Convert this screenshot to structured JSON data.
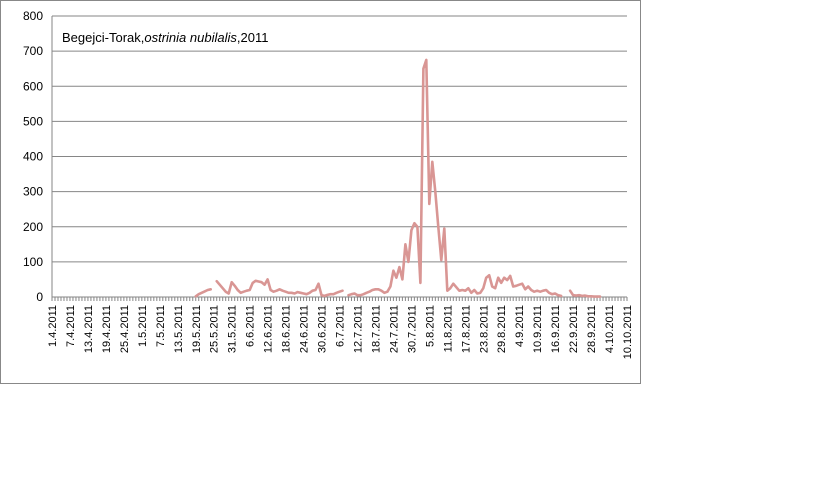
{
  "chart_data": {
    "type": "line",
    "title_parts": [
      "Begejci-Torak,",
      "ostrinia nubilalis",
      ",2011"
    ],
    "xlabel": "",
    "ylabel": "",
    "ylim": [
      0,
      800
    ],
    "yticks": [
      0,
      100,
      200,
      300,
      400,
      500,
      600,
      700,
      800
    ],
    "grid": "horizontal",
    "legend": "none",
    "x_start": "1.4.2011",
    "x_end": "10.10.2011",
    "xtick_labels": [
      "1.4.2011",
      "7.4.2011",
      "13.4.2011",
      "19.4.2011",
      "25.4.2011",
      "1.5.2011",
      "7.5.2011",
      "13.5.2011",
      "19.5.2011",
      "25.5.2011",
      "31.5.2011",
      "6.6.2011",
      "12.6.2011",
      "18.6.2011",
      "24.6.2011",
      "30.6.2011",
      "6.7.2011",
      "12.7.2011",
      "18.7.2011",
      "24.7.2011",
      "30.7.2011",
      "5.8.2011",
      "11.8.2011",
      "17.8.2011",
      "23.8.2011",
      "29.8.2011",
      "4.9.2011",
      "10.9.2011",
      "16.9.2011",
      "22.9.2011",
      "28.9.2011",
      "4.10.2011",
      "10.10.2011"
    ],
    "series": [
      {
        "color": "#d99694",
        "segments": [
          [
            [
              "19.5.2011",
              2
            ],
            [
              "20.5.2011",
              8
            ],
            [
              "21.5.2011",
              12
            ],
            [
              "22.5.2011",
              16
            ],
            [
              "23.5.2011",
              20
            ],
            [
              "24.5.2011",
              22
            ]
          ],
          [
            [
              "26.5.2011",
              45
            ],
            [
              "27.5.2011",
              35
            ],
            [
              "28.5.2011",
              25
            ],
            [
              "29.5.2011",
              15
            ],
            [
              "30.5.2011",
              10
            ],
            [
              "31.5.2011",
              42
            ],
            [
              "1.6.2011",
              32
            ],
            [
              "2.6.2011",
              20
            ],
            [
              "3.6.2011",
              12
            ],
            [
              "4.6.2011",
              15
            ],
            [
              "5.6.2011",
              18
            ],
            [
              "6.6.2011",
              20
            ],
            [
              "7.6.2011",
              40
            ],
            [
              "8.6.2011",
              46
            ],
            [
              "9.6.2011",
              44
            ],
            [
              "10.6.2011",
              42
            ],
            [
              "11.6.2011",
              35
            ],
            [
              "12.6.2011",
              50
            ],
            [
              "13.6.2011",
              20
            ],
            [
              "14.6.2011",
              15
            ],
            [
              "15.6.2011",
              18
            ],
            [
              "16.6.2011",
              22
            ],
            [
              "17.6.2011",
              18
            ],
            [
              "18.6.2011",
              15
            ],
            [
              "19.6.2011",
              12
            ],
            [
              "20.6.2011",
              12
            ],
            [
              "21.6.2011",
              10
            ],
            [
              "22.6.2011",
              14
            ],
            [
              "23.6.2011",
              12
            ],
            [
              "24.6.2011",
              10
            ],
            [
              "25.6.2011",
              8
            ],
            [
              "26.6.2011",
              12
            ],
            [
              "27.6.2011",
              18
            ],
            [
              "28.6.2011",
              20
            ],
            [
              "29.6.2011",
              38
            ],
            [
              "30.6.2011",
              5
            ],
            [
              "1.7.2011",
              3
            ],
            [
              "2.7.2011",
              6
            ],
            [
              "3.7.2011",
              8
            ],
            [
              "4.7.2011",
              8
            ],
            [
              "5.7.2011",
              12
            ],
            [
              "6.7.2011",
              15
            ],
            [
              "7.7.2011",
              18
            ]
          ],
          [
            [
              "9.7.2011",
              5
            ],
            [
              "10.7.2011",
              8
            ],
            [
              "11.7.2011",
              10
            ],
            [
              "12.7.2011",
              5
            ],
            [
              "13.7.2011",
              5
            ],
            [
              "14.7.2011",
              8
            ],
            [
              "15.7.2011",
              12
            ],
            [
              "16.7.2011",
              15
            ],
            [
              "17.7.2011",
              20
            ],
            [
              "18.7.2011",
              22
            ],
            [
              "19.7.2011",
              22
            ],
            [
              "20.7.2011",
              18
            ],
            [
              "21.7.2011",
              12
            ],
            [
              "22.7.2011",
              15
            ],
            [
              "23.7.2011",
              30
            ],
            [
              "24.7.2011",
              75
            ],
            [
              "25.7.2011",
              55
            ],
            [
              "26.7.2011",
              85
            ],
            [
              "27.7.2011",
              50
            ],
            [
              "28.7.2011",
              150
            ],
            [
              "29.7.2011",
              100
            ],
            [
              "30.7.2011",
              190
            ],
            [
              "31.7.2011",
              210
            ],
            [
              "1.8.2011",
              200
            ],
            [
              "2.8.2011",
              40
            ],
            [
              "3.8.2011",
              650
            ],
            [
              "4.8.2011",
              675
            ],
            [
              "5.8.2011",
              265
            ],
            [
              "6.8.2011",
              385
            ],
            [
              "7.8.2011",
              300
            ],
            [
              "8.8.2011",
              200
            ],
            [
              "9.8.2011",
              105
            ],
            [
              "10.8.2011",
              195
            ],
            [
              "11.8.2011",
              18
            ],
            [
              "12.8.2011",
              25
            ],
            [
              "13.8.2011",
              38
            ],
            [
              "14.8.2011",
              28
            ],
            [
              "15.8.2011",
              18
            ],
            [
              "16.8.2011",
              20
            ],
            [
              "17.8.2011",
              18
            ],
            [
              "18.8.2011",
              25
            ],
            [
              "19.8.2011",
              12
            ],
            [
              "20.8.2011",
              20
            ],
            [
              "21.8.2011",
              10
            ],
            [
              "22.8.2011",
              12
            ],
            [
              "23.8.2011",
              25
            ],
            [
              "24.8.2011",
              55
            ],
            [
              "25.8.2011",
              62
            ],
            [
              "26.8.2011",
              30
            ],
            [
              "27.8.2011",
              25
            ],
            [
              "28.8.2011",
              55
            ],
            [
              "29.8.2011",
              40
            ],
            [
              "30.8.2011",
              55
            ],
            [
              "31.8.2011",
              48
            ],
            [
              "1.9.2011",
              60
            ],
            [
              "2.9.2011",
              30
            ],
            [
              "3.9.2011",
              32
            ],
            [
              "4.9.2011",
              35
            ],
            [
              "5.9.2011",
              38
            ],
            [
              "6.9.2011",
              22
            ],
            [
              "7.9.2011",
              30
            ],
            [
              "8.9.2011",
              20
            ],
            [
              "9.9.2011",
              15
            ],
            [
              "10.9.2011",
              18
            ],
            [
              "11.9.2011",
              15
            ],
            [
              "12.9.2011",
              18
            ],
            [
              "13.9.2011",
              20
            ],
            [
              "14.9.2011",
              12
            ],
            [
              "15.9.2011",
              8
            ],
            [
              "16.9.2011",
              10
            ],
            [
              "17.9.2011",
              5
            ],
            [
              "18.9.2011",
              3
            ]
          ],
          [
            [
              "21.9.2011",
              18
            ],
            [
              "22.9.2011",
              5
            ],
            [
              "23.9.2011",
              4
            ],
            [
              "24.9.2011",
              5
            ],
            [
              "25.9.2011",
              3
            ],
            [
              "26.9.2011",
              4
            ],
            [
              "27.9.2011",
              2
            ],
            [
              "28.9.2011",
              2
            ],
            [
              "29.9.2011",
              1
            ],
            [
              "30.9.2011",
              1
            ],
            [
              "1.10.2011",
              1
            ]
          ]
        ]
      }
    ]
  }
}
